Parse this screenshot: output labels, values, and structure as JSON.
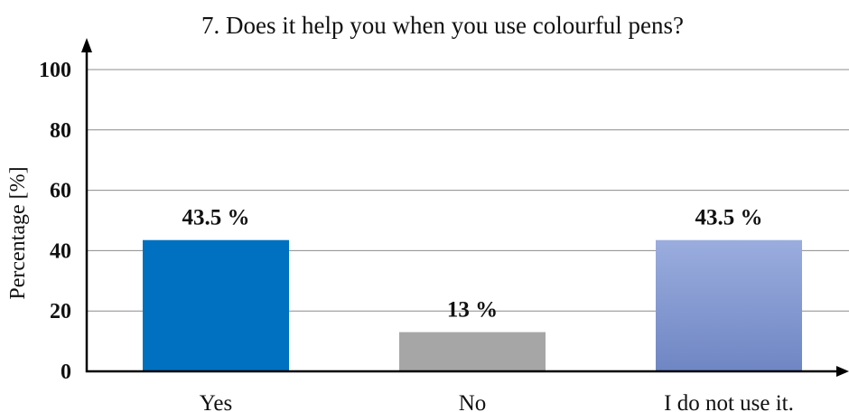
{
  "chart_data": {
    "type": "bar",
    "title": "7. Does it help you when you use colourful pens?",
    "xlabel": "",
    "ylabel": "Percentage [%]",
    "categories": [
      "Yes",
      "No",
      "I do not use it."
    ],
    "values": [
      43.5,
      13,
      43.5
    ],
    "data_labels": [
      "43.5 %",
      "13 %",
      "43.5 %"
    ],
    "bar_colors": [
      "#0070c0",
      "#a6a6a6",
      "#8ea2d8"
    ],
    "ylim": [
      0,
      100
    ],
    "yticks": [
      0,
      20,
      40,
      60,
      80,
      100
    ],
    "grid": true,
    "legend": "none"
  }
}
